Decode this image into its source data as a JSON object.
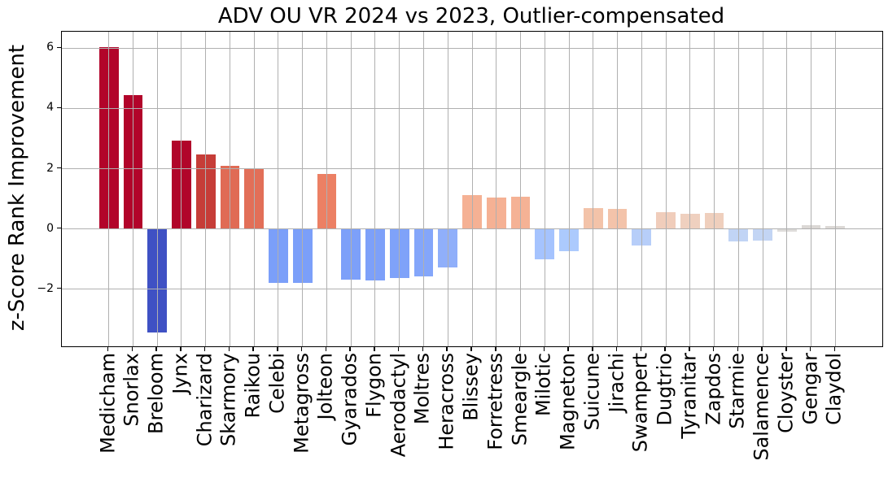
{
  "chart_data": {
    "type": "bar",
    "title": "ADV OU VR 2024 vs 2023, Outlier-compensated",
    "xlabel": "",
    "ylabel": "z-Score Rank Improvement",
    "categories": [
      "Medicham",
      "Snorlax",
      "Breloom",
      "Jynx",
      "Charizard",
      "Skarmory",
      "Raikou",
      "Celebi",
      "Metagross",
      "Jolteon",
      "Gyarados",
      "Flygon",
      "Aerodactyl",
      "Moltres",
      "Heracross",
      "Blissey",
      "Forretress",
      "Smeargle",
      "Milotic",
      "Magneton",
      "Suicune",
      "Jirachi",
      "Swampert",
      "Dugtrio",
      "Tyranitar",
      "Zapdos",
      "Starmie",
      "Salamence",
      "Cloyster",
      "Gengar",
      "Claydol"
    ],
    "values": [
      6.05,
      4.45,
      -3.45,
      2.93,
      2.47,
      2.1,
      2.0,
      -1.8,
      -1.79,
      1.82,
      -1.69,
      -1.7,
      -1.63,
      -1.57,
      -1.27,
      1.13,
      1.05,
      1.07,
      -1.0,
      -0.73,
      0.7,
      0.67,
      -0.55,
      0.56,
      0.5,
      0.52,
      -0.42,
      -0.4,
      -0.08,
      0.11,
      0.1
    ],
    "bar_colors": [
      "#b2042a",
      "#b2042a",
      "#3f51c4",
      "#b1052a",
      "#c63d38",
      "#e06b55",
      "#e26f58",
      "#7b9ff9",
      "#7b9ff9",
      "#ec8064",
      "#7da0f9",
      "#7da0f9",
      "#7fa2f9",
      "#84a6fa",
      "#90affa",
      "#f5b194",
      "#f5b194",
      "#f5b295",
      "#a5c3fe",
      "#accafd",
      "#f3c3a9",
      "#f3c3aa",
      "#b7cef9",
      "#f0cdbb",
      "#efd0bf",
      "#efcfbd",
      "#c1d4f5",
      "#c3d5f4",
      "#dedcda",
      "#dbd8d5",
      "#dcd9d6"
    ],
    "ylim": [
      -3.9,
      6.55
    ],
    "yticks": [
      6,
      4,
      2,
      0,
      -2
    ],
    "grid": true,
    "legend": "none",
    "background_color": "#ffffff",
    "gridline_color": "#b0b0b0",
    "spine_color": "#000000"
  }
}
